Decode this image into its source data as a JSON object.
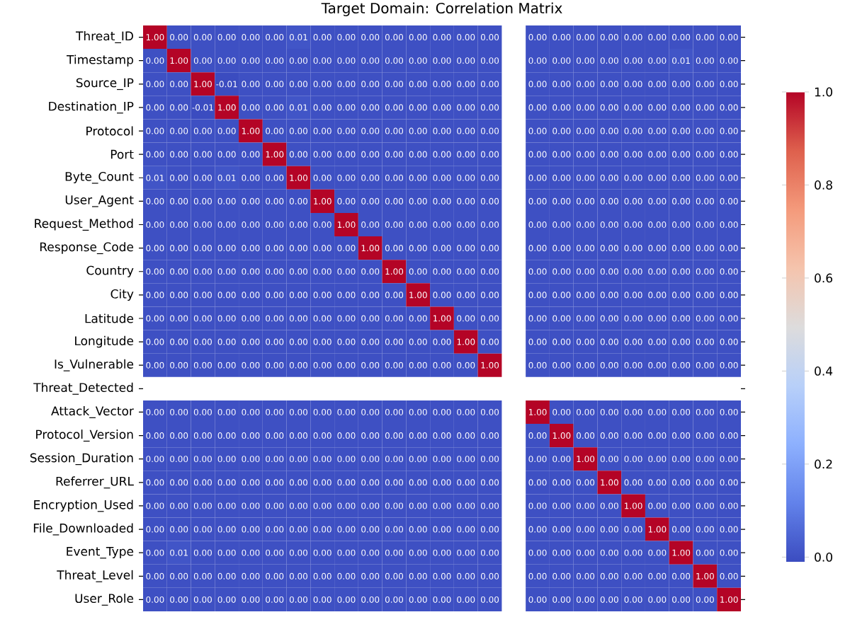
{
  "chart_data": {
    "type": "heatmap",
    "title": "Target Domain: Correlation Matrix",
    "categories": [
      null,
      null,
      null,
      null,
      null,
      null,
      null,
      null,
      null,
      null,
      null,
      null,
      null,
      null,
      null,
      null,
      null,
      null,
      null,
      null,
      null,
      null,
      null,
      null,
      null
    ],
    "y_categories": [
      "Threat_ID",
      "Timestamp",
      "Source_IP",
      "Destination_IP",
      "Protocol",
      "Port",
      "Byte_Count",
      "User_Agent",
      "Request_Method",
      "Response_Code",
      "Country",
      "City",
      "Latitude",
      "Longitude",
      "Is_Vulnerable",
      "Threat_Detected",
      "Attack_Vector",
      "Protocol_Version",
      "Session_Duration",
      "Referrer_URL",
      "Encryption_Used",
      "File_Downloaded",
      "Event_Type",
      "Threat_Level",
      "User_Role"
    ],
    "cells": [
      [
        1,
        0,
        0,
        0,
        0,
        0,
        0.01,
        0,
        0,
        0,
        0,
        0,
        0,
        0,
        0,
        null,
        0,
        0,
        0,
        0,
        0,
        0,
        0,
        0,
        0
      ],
      [
        0,
        1,
        0,
        0,
        0,
        0,
        0,
        0,
        0,
        0,
        0,
        0,
        0,
        0,
        0,
        null,
        0,
        0,
        0,
        0,
        0,
        0,
        0.01,
        0,
        0
      ],
      [
        0,
        0,
        1,
        -0.01,
        0,
        0,
        0,
        0,
        0,
        0,
        0,
        0,
        0,
        0,
        0,
        null,
        0,
        0,
        0,
        0,
        0,
        0,
        0,
        0,
        0
      ],
      [
        0,
        0,
        -0.01,
        1,
        0,
        0,
        0.01,
        0,
        0,
        0,
        0,
        0,
        0,
        0,
        0,
        null,
        0,
        0,
        0,
        0,
        0,
        0,
        0,
        0,
        0
      ],
      [
        0,
        0,
        0,
        0,
        1,
        0,
        0,
        0,
        0,
        0,
        0,
        0,
        0,
        0,
        0,
        null,
        0,
        0,
        0,
        0,
        0,
        0,
        0,
        0,
        0
      ],
      [
        0,
        0,
        0,
        0,
        0,
        1,
        0,
        0,
        0,
        0,
        0,
        0,
        0,
        0,
        0,
        null,
        0,
        0,
        0,
        0,
        0,
        0,
        0,
        0,
        0
      ],
      [
        0.01,
        0,
        0,
        0.01,
        0,
        0,
        1,
        0,
        0,
        0,
        0,
        0,
        0,
        0,
        0,
        null,
        0,
        0,
        0,
        0,
        0,
        0,
        0,
        0,
        0
      ],
      [
        0,
        0,
        0,
        0,
        0,
        0,
        0,
        1,
        0,
        0,
        0,
        0,
        0,
        0,
        0,
        null,
        0,
        0,
        0,
        0,
        0,
        0,
        0,
        0,
        0
      ],
      [
        0,
        0,
        0,
        0,
        0,
        0,
        0,
        0,
        1,
        0,
        0,
        0,
        0,
        0,
        0,
        null,
        0,
        0,
        0,
        0,
        0,
        0,
        0,
        0,
        0
      ],
      [
        0,
        0,
        0,
        0,
        0,
        0,
        0,
        0,
        0,
        1,
        0,
        0,
        0,
        0,
        0,
        null,
        0,
        0,
        0,
        0,
        0,
        0,
        0,
        0,
        0
      ],
      [
        0,
        0,
        0,
        0,
        0,
        0,
        0,
        0,
        0,
        0,
        1,
        0,
        0,
        0,
        0,
        null,
        0,
        0,
        0,
        0,
        0,
        0,
        0,
        0,
        0
      ],
      [
        0,
        0,
        0,
        0,
        0,
        0,
        0,
        0,
        0,
        0,
        0,
        1,
        0,
        0,
        0,
        null,
        0,
        0,
        0,
        0,
        0,
        0,
        0,
        0,
        0
      ],
      [
        0,
        0,
        0,
        0,
        0,
        0,
        0,
        0,
        0,
        0,
        0,
        0,
        1,
        0,
        0,
        null,
        0,
        0,
        0,
        0,
        0,
        0,
        0,
        0,
        0
      ],
      [
        0,
        0,
        0,
        0,
        0,
        0,
        0,
        0,
        0,
        0,
        0,
        0,
        0,
        1,
        0,
        null,
        0,
        0,
        0,
        0,
        0,
        0,
        0,
        0,
        0
      ],
      [
        0,
        0,
        0,
        0,
        0,
        0,
        0,
        0,
        0,
        0,
        0,
        0,
        0,
        0,
        1,
        null,
        0,
        0,
        0,
        0,
        0,
        0,
        0,
        0,
        0
      ],
      [
        null,
        null,
        null,
        null,
        null,
        null,
        null,
        null,
        null,
        null,
        null,
        null,
        null,
        null,
        null,
        null,
        null,
        null,
        null,
        null,
        null,
        null,
        null,
        null,
        null
      ],
      [
        0,
        0,
        0,
        0,
        0,
        0,
        0,
        0,
        0,
        0,
        0,
        0,
        0,
        0,
        0,
        null,
        1,
        0,
        0,
        0,
        0,
        0,
        0,
        0,
        0
      ],
      [
        0,
        0,
        0,
        0,
        0,
        0,
        0,
        0,
        0,
        0,
        0,
        0,
        0,
        0,
        0,
        null,
        0,
        1,
        0,
        0,
        0,
        0,
        0,
        0,
        0
      ],
      [
        0,
        0,
        0,
        0,
        0,
        0,
        0,
        0,
        0,
        0,
        0,
        0,
        0,
        0,
        0,
        null,
        0,
        0,
        1,
        0,
        0,
        0,
        0,
        0,
        0
      ],
      [
        0,
        0,
        0,
        0,
        0,
        0,
        0,
        0,
        0,
        0,
        0,
        0,
        0,
        0,
        0,
        null,
        0,
        0,
        0,
        1,
        0,
        0,
        0,
        0,
        0
      ],
      [
        0,
        0,
        0,
        0,
        0,
        0,
        0,
        0,
        0,
        0,
        0,
        0,
        0,
        0,
        0,
        null,
        0,
        0,
        0,
        0,
        1,
        0,
        0,
        0,
        0
      ],
      [
        0,
        0,
        0,
        0,
        0,
        0,
        0,
        0,
        0,
        0,
        0,
        0,
        0,
        0,
        0,
        null,
        0,
        0,
        0,
        0,
        0,
        1,
        0,
        0,
        0
      ],
      [
        0,
        0.01,
        0,
        0,
        0,
        0,
        0,
        0,
        0,
        0,
        0,
        0,
        0,
        0,
        0,
        null,
        0,
        0,
        0,
        0,
        0,
        0,
        1,
        0,
        0
      ],
      [
        0,
        0,
        0,
        0,
        0,
        0,
        0,
        0,
        0,
        0,
        0,
        0,
        0,
        0,
        0,
        null,
        0,
        0,
        0,
        0,
        0,
        0,
        0,
        1,
        0
      ],
      [
        0,
        0,
        0,
        0,
        0,
        0,
        0,
        0,
        0,
        0,
        0,
        0,
        0,
        0,
        0,
        null,
        0,
        0,
        0,
        0,
        0,
        0,
        0,
        0,
        1
      ]
    ],
    "cell_labels": [
      [
        "1.00",
        "0.00",
        "0.00",
        "0.00",
        "0.00",
        "0.00",
        "0.01",
        "0.00",
        "0.00",
        "0.00",
        "0.00",
        "0.00",
        "0.00",
        "0.00",
        "0.00",
        null,
        "0.00",
        "0.00",
        "0.00",
        "0.00",
        "0.00",
        "0.00",
        "0.00",
        "0.00",
        "0.00"
      ],
      [
        "0.00",
        "1.00",
        "0.00",
        "0.00",
        "0.00",
        "0.00",
        "0.00",
        "0.00",
        "0.00",
        "0.00",
        "0.00",
        "0.00",
        "0.00",
        "0.00",
        "0.00",
        null,
        "0.00",
        "0.00",
        "0.00",
        "0.00",
        "0.00",
        "0.00",
        "0.01",
        "0.00",
        "0.00"
      ],
      [
        "0.00",
        "0.00",
        "1.00",
        "-0.01",
        "0.00",
        "0.00",
        "0.00",
        "0.00",
        "0.00",
        "0.00",
        "0.00",
        "0.00",
        "0.00",
        "0.00",
        "0.00",
        null,
        "0.00",
        "0.00",
        "0.00",
        "0.00",
        "0.00",
        "0.00",
        "0.00",
        "0.00",
        "0.00"
      ],
      [
        "0.00",
        "0.00",
        "-0.01",
        "1.00",
        "0.00",
        "0.00",
        "0.01",
        "0.00",
        "0.00",
        "0.00",
        "0.00",
        "0.00",
        "0.00",
        "0.00",
        "0.00",
        null,
        "0.00",
        "0.00",
        "0.00",
        "0.00",
        "0.00",
        "0.00",
        "0.00",
        "0.00",
        "0.00"
      ],
      [
        "0.00",
        "0.00",
        "0.00",
        "0.00",
        "1.00",
        "0.00",
        "0.00",
        "0.00",
        "0.00",
        "0.00",
        "0.00",
        "0.00",
        "0.00",
        "0.00",
        "0.00",
        null,
        "0.00",
        "0.00",
        "0.00",
        "0.00",
        "0.00",
        "0.00",
        "0.00",
        "0.00",
        "0.00"
      ],
      [
        "0.00",
        "0.00",
        "0.00",
        "0.00",
        "0.00",
        "1.00",
        "0.00",
        "0.00",
        "0.00",
        "0.00",
        "0.00",
        "0.00",
        "0.00",
        "0.00",
        "0.00",
        null,
        "0.00",
        "0.00",
        "0.00",
        "0.00",
        "0.00",
        "0.00",
        "0.00",
        "0.00",
        "0.00"
      ],
      [
        "0.01",
        "0.00",
        "0.00",
        "0.01",
        "0.00",
        "0.00",
        "1.00",
        "0.00",
        "0.00",
        "0.00",
        "0.00",
        "0.00",
        "0.00",
        "0.00",
        "0.00",
        null,
        "0.00",
        "0.00",
        "0.00",
        "0.00",
        "0.00",
        "0.00",
        "0.00",
        "0.00",
        "0.00"
      ],
      [
        "0.00",
        "0.00",
        "0.00",
        "0.00",
        "0.00",
        "0.00",
        "0.00",
        "1.00",
        "0.00",
        "0.00",
        "0.00",
        "0.00",
        "0.00",
        "0.00",
        "0.00",
        null,
        "0.00",
        "0.00",
        "0.00",
        "0.00",
        "0.00",
        "0.00",
        "0.00",
        "0.00",
        "0.00"
      ],
      [
        "0.00",
        "0.00",
        "0.00",
        "0.00",
        "0.00",
        "0.00",
        "0.00",
        "0.00",
        "1.00",
        "0.00",
        "0.00",
        "0.00",
        "0.00",
        "0.00",
        "0.00",
        null,
        "0.00",
        "0.00",
        "0.00",
        "0.00",
        "0.00",
        "0.00",
        "0.00",
        "0.00",
        "0.00"
      ],
      [
        "0.00",
        "0.00",
        "0.00",
        "0.00",
        "0.00",
        "0.00",
        "0.00",
        "0.00",
        "0.00",
        "1.00",
        "0.00",
        "0.00",
        "0.00",
        "0.00",
        "0.00",
        null,
        "0.00",
        "0.00",
        "0.00",
        "0.00",
        "0.00",
        "0.00",
        "0.00",
        "0.00",
        "0.00"
      ],
      [
        "0.00",
        "0.00",
        "0.00",
        "0.00",
        "0.00",
        "0.00",
        "0.00",
        "0.00",
        "0.00",
        "0.00",
        "1.00",
        "0.00",
        "0.00",
        "0.00",
        "0.00",
        null,
        "0.00",
        "0.00",
        "0.00",
        "0.00",
        "0.00",
        "0.00",
        "0.00",
        "0.00",
        "0.00"
      ],
      [
        "0.00",
        "0.00",
        "0.00",
        "0.00",
        "0.00",
        "0.00",
        "0.00",
        "0.00",
        "0.00",
        "0.00",
        "0.00",
        "1.00",
        "0.00",
        "0.00",
        "0.00",
        null,
        "0.00",
        "0.00",
        "0.00",
        "0.00",
        "0.00",
        "0.00",
        "0.00",
        "0.00",
        "0.00"
      ],
      [
        "0.00",
        "0.00",
        "0.00",
        "0.00",
        "0.00",
        "0.00",
        "0.00",
        "0.00",
        "0.00",
        "0.00",
        "0.00",
        "0.00",
        "1.00",
        "0.00",
        "0.00",
        null,
        "0.00",
        "0.00",
        "0.00",
        "0.00",
        "0.00",
        "0.00",
        "0.00",
        "0.00",
        "0.00"
      ],
      [
        "0.00",
        "0.00",
        "0.00",
        "0.00",
        "0.00",
        "0.00",
        "0.00",
        "0.00",
        "0.00",
        "0.00",
        "0.00",
        "0.00",
        "0.00",
        "1.00",
        "0.00",
        null,
        "0.00",
        "0.00",
        "0.00",
        "0.00",
        "0.00",
        "0.00",
        "0.00",
        "0.00",
        "0.00"
      ],
      [
        "0.00",
        "0.00",
        "0.00",
        "0.00",
        "0.00",
        "0.00",
        "0.00",
        "0.00",
        "0.00",
        "0.00",
        "0.00",
        "0.00",
        "0.00",
        "0.00",
        "1.00",
        null,
        "0.00",
        "0.00",
        "0.00",
        "0.00",
        "0.00",
        "0.00",
        "0.00",
        "0.00",
        "0.00"
      ],
      [
        null,
        null,
        null,
        null,
        null,
        null,
        null,
        null,
        null,
        null,
        null,
        null,
        null,
        null,
        null,
        null,
        null,
        null,
        null,
        null,
        null,
        null,
        null,
        null,
        null
      ],
      [
        "0.00",
        "0.00",
        "0.00",
        "0.00",
        "0.00",
        "0.00",
        "0.00",
        "0.00",
        "0.00",
        "0.00",
        "0.00",
        "0.00",
        "0.00",
        "0.00",
        "0.00",
        null,
        "1.00",
        "0.00",
        "0.00",
        "0.00",
        "0.00",
        "0.00",
        "0.00",
        "0.00",
        "0.00"
      ],
      [
        "0.00",
        "0.00",
        "0.00",
        "0.00",
        "0.00",
        "0.00",
        "0.00",
        "0.00",
        "0.00",
        "0.00",
        "0.00",
        "0.00",
        "0.00",
        "0.00",
        "0.00",
        null,
        "0.00",
        "1.00",
        "0.00",
        "0.00",
        "0.00",
        "0.00",
        "0.00",
        "0.00",
        "0.00"
      ],
      [
        "0.00",
        "0.00",
        "0.00",
        "0.00",
        "0.00",
        "0.00",
        "0.00",
        "0.00",
        "0.00",
        "0.00",
        "0.00",
        "0.00",
        "0.00",
        "0.00",
        "0.00",
        null,
        "0.00",
        "0.00",
        "1.00",
        "0.00",
        "0.00",
        "0.00",
        "0.00",
        "0.00",
        "0.00"
      ],
      [
        "0.00",
        "0.00",
        "0.00",
        "0.00",
        "0.00",
        "0.00",
        "0.00",
        "0.00",
        "0.00",
        "0.00",
        "0.00",
        "0.00",
        "0.00",
        "0.00",
        "0.00",
        null,
        "0.00",
        "0.00",
        "0.00",
        "1.00",
        "0.00",
        "0.00",
        "0.00",
        "0.00",
        "0.00"
      ],
      [
        "0.00",
        "0.00",
        "0.00",
        "0.00",
        "0.00",
        "0.00",
        "0.00",
        "0.00",
        "0.00",
        "0.00",
        "0.00",
        "0.00",
        "0.00",
        "0.00",
        "0.00",
        null,
        "0.00",
        "0.00",
        "0.00",
        "0.00",
        "1.00",
        "0.00",
        "0.00",
        "0.00",
        "0.00"
      ],
      [
        "0.00",
        "0.00",
        "0.00",
        "0.00",
        "0.00",
        "0.00",
        "0.00",
        "0.00",
        "0.00",
        "0.00",
        "0.00",
        "0.00",
        "0.00",
        "0.00",
        "0.00",
        null,
        "0.00",
        "0.00",
        "0.00",
        "0.00",
        "0.00",
        "1.00",
        "0.00",
        "0.00",
        "0.00"
      ],
      [
        "0.00",
        "0.01",
        "0.00",
        "0.00",
        "0.00",
        "0.00",
        "0.00",
        "0.00",
        "0.00",
        "0.00",
        "0.00",
        "0.00",
        "0.00",
        "0.00",
        "0.00",
        null,
        "0.00",
        "0.00",
        "0.00",
        "0.00",
        "0.00",
        "0.00",
        "1.00",
        "0.00",
        "0.00"
      ],
      [
        "0.00",
        "0.00",
        "0.00",
        "0.00",
        "0.00",
        "0.00",
        "0.00",
        "0.00",
        "0.00",
        "0.00",
        "0.00",
        "0.00",
        "0.00",
        "0.00",
        "0.00",
        null,
        "0.00",
        "0.00",
        "0.00",
        "0.00",
        "0.00",
        "0.00",
        "0.00",
        "1.00",
        "0.00"
      ],
      [
        "0.00",
        "0.00",
        "0.00",
        "0.00",
        "0.00",
        "0.00",
        "0.00",
        "0.00",
        "0.00",
        "0.00",
        "0.00",
        "0.00",
        "0.00",
        "0.00",
        "0.00",
        null,
        "0.00",
        "0.00",
        "0.00",
        "0.00",
        "0.00",
        "0.00",
        "0.00",
        "0.00",
        "1.00"
      ]
    ],
    "clim": [
      -0.01,
      1.0
    ],
    "cticks": [
      {
        "value": 0,
        "label": "0.0"
      },
      {
        "value": 0.2,
        "label": "0.2"
      },
      {
        "value": 0.4,
        "label": "0.4"
      },
      {
        "value": 0.6,
        "label": "0.6"
      },
      {
        "value": 0.8,
        "label": "0.8"
      },
      {
        "value": 1.0,
        "label": "1.0"
      }
    ],
    "tick_labels": "y"
  }
}
